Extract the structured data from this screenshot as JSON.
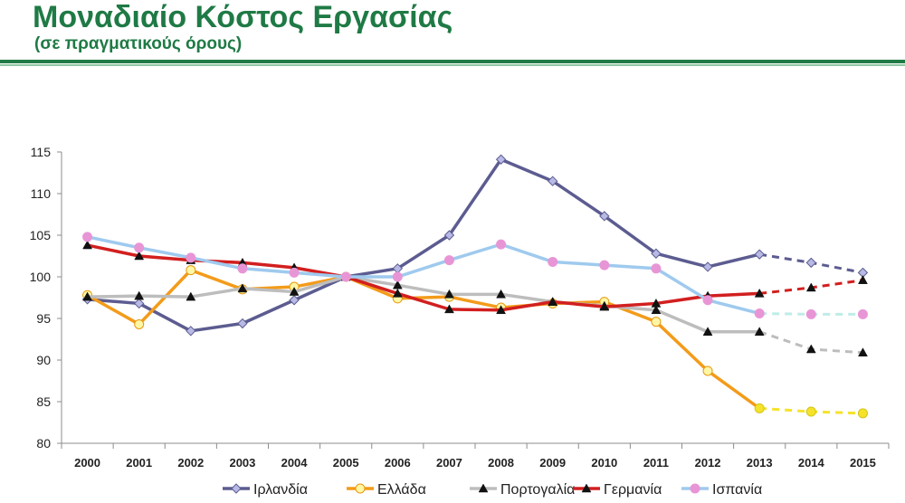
{
  "header": {
    "title": "Μοναδιαίο Κόστος Εργασίας",
    "subtitle": "(σε πραγματικούς όρους)"
  },
  "chart_data": {
    "type": "line",
    "title": "",
    "xlabel": "",
    "ylabel": "",
    "x": [
      "2000",
      "2001",
      "2002",
      "2003",
      "2004",
      "2005",
      "2006",
      "2007",
      "2008",
      "2009",
      "2010",
      "2011",
      "2012",
      "2013",
      "2014",
      "2015"
    ],
    "ylim": [
      80,
      115
    ],
    "yticks": [
      80,
      85,
      90,
      95,
      100,
      105,
      110,
      115
    ],
    "grid": false,
    "legend_position": "bottom",
    "projection_start": "2013",
    "series": [
      {
        "name": "Ιρλανδία",
        "color": "#5c5c91",
        "marker": "diamond",
        "values": [
          97.3,
          96.8,
          93.5,
          94.4,
          97.2,
          100,
          101,
          105,
          114.1,
          111.5,
          107.3,
          102.8,
          101.2,
          102.7,
          101.7,
          100.5
        ]
      },
      {
        "name": "Ελλάδα",
        "color": "#f39b1a",
        "marker": "circle",
        "projection_color": "#f5e32a",
        "values": [
          97.8,
          94.3,
          100.8,
          98.5,
          98.8,
          100,
          97.4,
          97.6,
          96.3,
          96.8,
          97,
          94.6,
          88.7,
          84.2,
          83.8,
          83.6
        ]
      },
      {
        "name": "Πορτογαλία",
        "color": "#bdbdbd",
        "marker": "triangle",
        "values": [
          97.6,
          97.7,
          97.6,
          98.6,
          98.2,
          100,
          99,
          97.9,
          97.9,
          97,
          96.5,
          96,
          93.4,
          93.4,
          91.3,
          90.9
        ]
      },
      {
        "name": "Γερμανία",
        "color": "#d21f1f",
        "marker": "triangle",
        "values": [
          103.8,
          102.5,
          102,
          101.7,
          101.1,
          100,
          98,
          96.1,
          96,
          97,
          96.4,
          96.8,
          97.7,
          98,
          98.7,
          99.6
        ]
      },
      {
        "name": "Ισπανία",
        "color": "#9fcaee",
        "marker": "circle",
        "marker_color": "#e895d6",
        "projection_color": "#bfece6",
        "values": [
          104.8,
          103.5,
          102.3,
          101,
          100.5,
          100,
          100,
          102,
          103.9,
          101.8,
          101.4,
          101,
          97.2,
          95.6,
          95.5,
          95.5
        ]
      }
    ]
  }
}
